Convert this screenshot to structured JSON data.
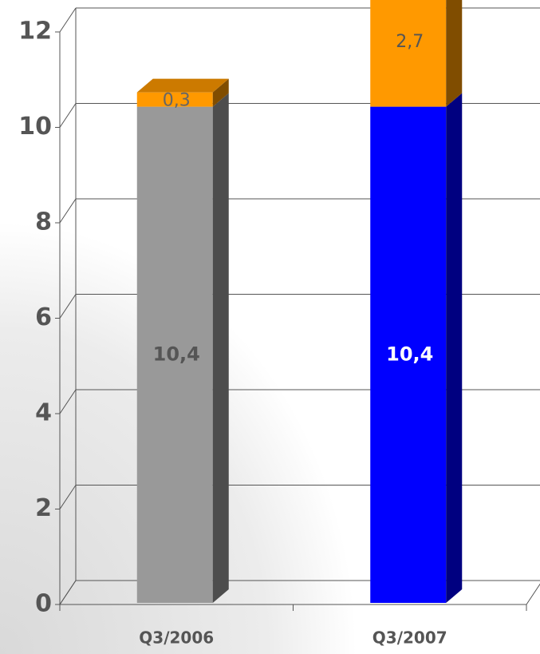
{
  "chart_data": {
    "type": "bar3d_stacked",
    "categories": [
      "Q3/2006",
      "Q3/2007"
    ],
    "series": [
      {
        "colors": [
          "#999999",
          "#0000ff"
        ],
        "values": [
          10.4,
          10.4
        ],
        "value_labels": [
          "10,4",
          "10,4"
        ],
        "label_colors": [
          "#555555",
          "#ffffff"
        ]
      },
      {
        "color": "#ff9900",
        "values": [
          0.3,
          2.7
        ],
        "value_labels": [
          "0,3",
          "2,7"
        ],
        "label_colors": [
          "#666666",
          "#555555"
        ]
      }
    ],
    "ylim": [
      0,
      12
    ],
    "yticks": [
      0,
      2,
      4,
      6,
      8,
      10,
      12
    ],
    "grid": true
  }
}
